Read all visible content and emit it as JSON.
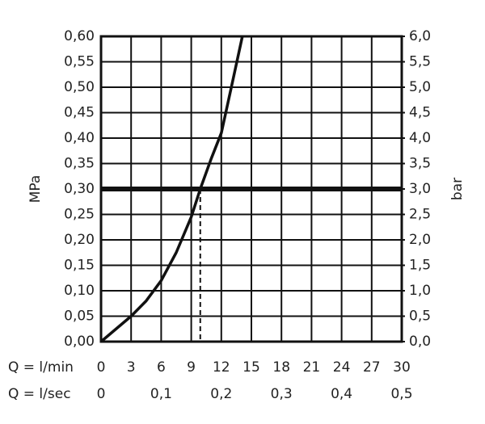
{
  "chart_data": {
    "type": "line",
    "y_label": "MPa",
    "y2_label": "bar",
    "x_row_label": "Q = l/min",
    "x2_row_label": "Q = l/sec",
    "x": [
      0,
      1.5,
      3,
      4.5,
      6,
      7.5,
      9,
      9.9,
      11,
      12,
      13,
      14.1
    ],
    "values": [
      0,
      0.025,
      0.05,
      0.08,
      0.12,
      0.175,
      0.245,
      0.3,
      0.36,
      0.41,
      0.5,
      0.6
    ],
    "color": "#111111",
    "reference_line": {
      "y": 0.3
    },
    "dashed_drop": {
      "x": 9.9,
      "y": 0.3
    },
    "xlim": [
      0,
      30
    ],
    "xticks": [
      0,
      3,
      6,
      9,
      12,
      15,
      18,
      21,
      24,
      27,
      30
    ],
    "x2lim": [
      0,
      0.5
    ],
    "x2ticks": [
      0,
      {
        "value": 0.1,
        "label": "0,1"
      },
      {
        "value": 0.2,
        "label": "0,2"
      },
      {
        "value": 0.3,
        "label": "0,3"
      },
      {
        "value": 0.4,
        "label": "0,4"
      },
      {
        "value": 0.5,
        "label": "0,5"
      }
    ],
    "ylim": [
      0,
      0.6
    ],
    "yticks": [
      {
        "value": 0,
        "label": "0,00"
      },
      {
        "value": 0.05,
        "label": "0,05"
      },
      {
        "value": 0.1,
        "label": "0,10"
      },
      {
        "value": 0.15,
        "label": "0,15"
      },
      {
        "value": 0.2,
        "label": "0,20"
      },
      {
        "value": 0.25,
        "label": "0,25"
      },
      {
        "value": 0.3,
        "label": "0,30"
      },
      {
        "value": 0.35,
        "label": "0,35"
      },
      {
        "value": 0.4,
        "label": "0,40"
      },
      {
        "value": 0.45,
        "label": "0,45"
      },
      {
        "value": 0.5,
        "label": "0,50"
      },
      {
        "value": 0.55,
        "label": "0,55"
      },
      {
        "value": 0.6,
        "label": "0,60"
      }
    ],
    "y2lim": [
      0,
      6
    ],
    "y2ticks": [
      {
        "value": 0,
        "label": "0,0"
      },
      {
        "value": 0.5,
        "label": "0,5"
      },
      {
        "value": 1,
        "label": "1,0"
      },
      {
        "value": 1.5,
        "label": "1,5"
      },
      {
        "value": 2,
        "label": "2,0"
      },
      {
        "value": 2.5,
        "label": "2,5"
      },
      {
        "value": 3,
        "label": "3,0"
      },
      {
        "value": 3.5,
        "label": "3,5"
      },
      {
        "value": 4,
        "label": "4,0"
      },
      {
        "value": 4.5,
        "label": "4,5"
      },
      {
        "value": 5,
        "label": "5,0"
      },
      {
        "value": 5.5,
        "label": "5,5"
      },
      {
        "value": 6,
        "label": "6,0"
      }
    ],
    "grid": true
  }
}
